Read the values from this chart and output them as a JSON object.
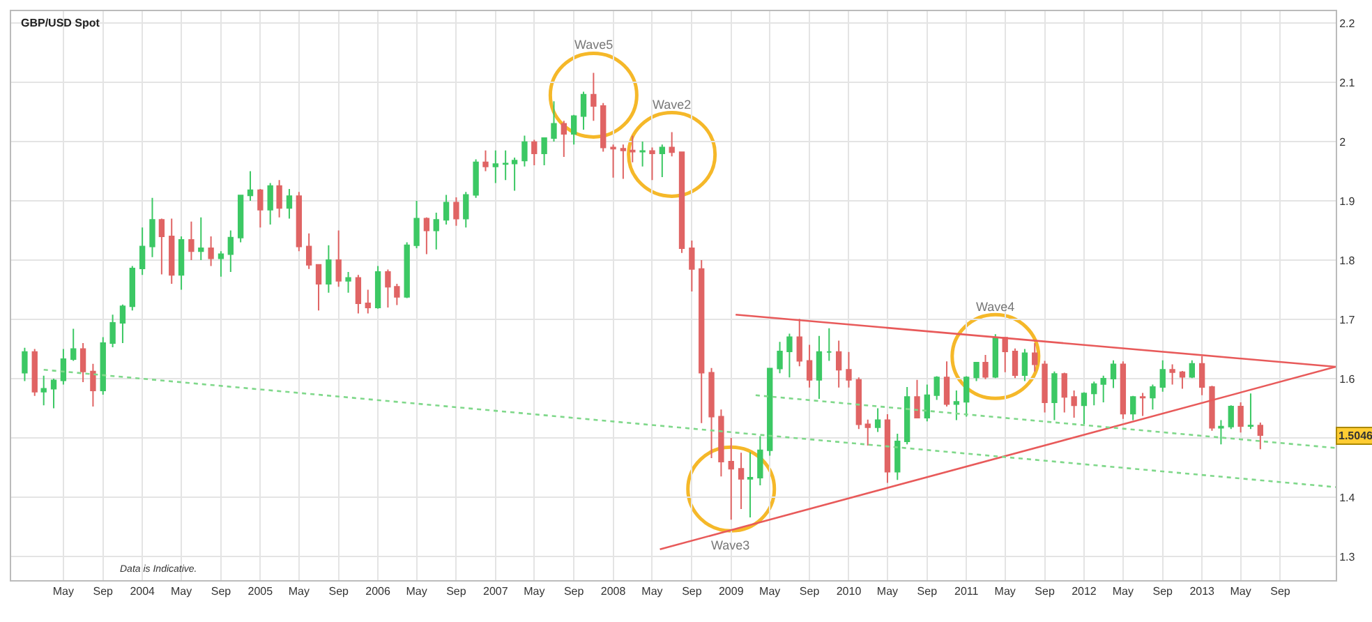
{
  "chart_data": {
    "type": "candlestick",
    "title": "GBP/USD Spot",
    "x": [
      "2003-01",
      "2003-02",
      "2003-03",
      "2003-04",
      "2003-05",
      "2003-06",
      "2003-07",
      "2003-08",
      "2003-09",
      "2003-10",
      "2003-11",
      "2003-12",
      "2004-01",
      "2004-02",
      "2004-03",
      "2004-04",
      "2004-05",
      "2004-06",
      "2004-07",
      "2004-08",
      "2004-09",
      "2004-10",
      "2004-11",
      "2004-12",
      "2005-01",
      "2005-02",
      "2005-03",
      "2005-04",
      "2005-05",
      "2005-06",
      "2005-07",
      "2005-08",
      "2005-09",
      "2005-10",
      "2005-11",
      "2005-12",
      "2006-01",
      "2006-02",
      "2006-03",
      "2006-04",
      "2006-05",
      "2006-06",
      "2006-07",
      "2006-08",
      "2006-09",
      "2006-10",
      "2006-11",
      "2006-12",
      "2007-01",
      "2007-02",
      "2007-03",
      "2007-04",
      "2007-05",
      "2007-06",
      "2007-07",
      "2007-08",
      "2007-09",
      "2007-10",
      "2007-11",
      "2007-12",
      "2008-01",
      "2008-02",
      "2008-03",
      "2008-04",
      "2008-05",
      "2008-06",
      "2008-07",
      "2008-08",
      "2008-09",
      "2008-10",
      "2008-11",
      "2008-12",
      "2009-01",
      "2009-02",
      "2009-03",
      "2009-04",
      "2009-05",
      "2009-06",
      "2009-07",
      "2009-08",
      "2009-09",
      "2009-10",
      "2009-11",
      "2009-12",
      "2010-01",
      "2010-02",
      "2010-03",
      "2010-04",
      "2010-05",
      "2010-06",
      "2010-07",
      "2010-08",
      "2010-09",
      "2010-10",
      "2010-11",
      "2010-12",
      "2011-01",
      "2011-02",
      "2011-03",
      "2011-04",
      "2011-05",
      "2011-06",
      "2011-07",
      "2011-08",
      "2011-09",
      "2011-10",
      "2011-11",
      "2011-12",
      "2012-01",
      "2012-02",
      "2012-03",
      "2012-04",
      "2012-05",
      "2012-06",
      "2012-07",
      "2012-08",
      "2012-09",
      "2012-10",
      "2012-11",
      "2012-12",
      "2013-01",
      "2013-02",
      "2013-03",
      "2013-04",
      "2013-05",
      "2013-06",
      "2013-07"
    ],
    "ohlc": [
      [
        1.61,
        1.652,
        1.596,
        1.645
      ],
      [
        1.645,
        1.65,
        1.571,
        1.578
      ],
      [
        1.578,
        1.605,
        1.555,
        1.583
      ],
      [
        1.583,
        1.6,
        1.55,
        1.597
      ],
      [
        1.597,
        1.65,
        1.59,
        1.633
      ],
      [
        1.633,
        1.684,
        1.63,
        1.65
      ],
      [
        1.65,
        1.66,
        1.594,
        1.612
      ],
      [
        1.612,
        1.625,
        1.553,
        1.58
      ],
      [
        1.58,
        1.67,
        1.573,
        1.66
      ],
      [
        1.66,
        1.708,
        1.653,
        1.694
      ],
      [
        1.694,
        1.725,
        1.66,
        1.722
      ],
      [
        1.722,
        1.79,
        1.715,
        1.786
      ],
      [
        1.786,
        1.855,
        1.775,
        1.823
      ],
      [
        1.823,
        1.905,
        1.805,
        1.868
      ],
      [
        1.868,
        1.87,
        1.776,
        1.84
      ],
      [
        1.84,
        1.87,
        1.76,
        1.775
      ],
      [
        1.775,
        1.84,
        1.75,
        1.834
      ],
      [
        1.834,
        1.865,
        1.8,
        1.815
      ],
      [
        1.815,
        1.872,
        1.8,
        1.82
      ],
      [
        1.82,
        1.84,
        1.79,
        1.803
      ],
      [
        1.803,
        1.815,
        1.772,
        1.81
      ],
      [
        1.81,
        1.85,
        1.78,
        1.838
      ],
      [
        1.838,
        1.91,
        1.83,
        1.909
      ],
      [
        1.909,
        1.95,
        1.9,
        1.918
      ],
      [
        1.918,
        1.92,
        1.855,
        1.885
      ],
      [
        1.885,
        1.93,
        1.86,
        1.925
      ],
      [
        1.925,
        1.935,
        1.872,
        1.888
      ],
      [
        1.888,
        1.92,
        1.87,
        1.908
      ],
      [
        1.908,
        1.915,
        1.815,
        1.823
      ],
      [
        1.823,
        1.845,
        1.785,
        1.792
      ],
      [
        1.792,
        1.792,
        1.715,
        1.76
      ],
      [
        1.76,
        1.825,
        1.745,
        1.8
      ],
      [
        1.8,
        1.85,
        1.755,
        1.765
      ],
      [
        1.765,
        1.78,
        1.745,
        1.77
      ],
      [
        1.77,
        1.775,
        1.71,
        1.727
      ],
      [
        1.727,
        1.75,
        1.71,
        1.72
      ],
      [
        1.72,
        1.79,
        1.718,
        1.78
      ],
      [
        1.78,
        1.784,
        1.72,
        1.755
      ],
      [
        1.755,
        1.76,
        1.724,
        1.738
      ],
      [
        1.738,
        1.83,
        1.736,
        1.825
      ],
      [
        1.825,
        1.9,
        1.82,
        1.87
      ],
      [
        1.87,
        1.872,
        1.81,
        1.85
      ],
      [
        1.85,
        1.88,
        1.818,
        1.868
      ],
      [
        1.868,
        1.91,
        1.86,
        1.897
      ],
      [
        1.897,
        1.906,
        1.858,
        1.87
      ],
      [
        1.87,
        1.915,
        1.855,
        1.91
      ],
      [
        1.91,
        1.97,
        1.905,
        1.965
      ],
      [
        1.965,
        1.985,
        1.95,
        1.958
      ],
      [
        1.958,
        1.985,
        1.93,
        1.962
      ],
      [
        1.962,
        1.985,
        1.935,
        1.963
      ],
      [
        1.963,
        1.973,
        1.917,
        1.968
      ],
      [
        1.968,
        2.01,
        1.958,
        1.999
      ],
      [
        1.999,
        2.003,
        1.96,
        1.98
      ],
      [
        1.98,
        2.007,
        1.96,
        2.006
      ],
      [
        2.006,
        2.068,
        2.0,
        2.03
      ],
      [
        2.03,
        2.035,
        1.974,
        2.013
      ],
      [
        2.013,
        2.045,
        1.995,
        2.043
      ],
      [
        2.043,
        2.084,
        2.02,
        2.079
      ],
      [
        2.079,
        2.116,
        2.035,
        2.06
      ],
      [
        2.06,
        2.065,
        1.983,
        1.99
      ],
      [
        1.99,
        1.995,
        1.939,
        1.988
      ],
      [
        1.988,
        1.995,
        1.937,
        1.985
      ],
      [
        1.985,
        2.01,
        1.965,
        1.983
      ],
      [
        1.983,
        2.0,
        1.958,
        1.984
      ],
      [
        1.984,
        1.99,
        1.935,
        1.98
      ],
      [
        1.98,
        1.995,
        1.94,
        1.99
      ],
      [
        1.99,
        2.016,
        1.975,
        1.982
      ],
      [
        1.982,
        1.982,
        1.812,
        1.82
      ],
      [
        1.82,
        1.833,
        1.747,
        1.785
      ],
      [
        1.785,
        1.8,
        1.525,
        1.61
      ],
      [
        1.61,
        1.618,
        1.466,
        1.536
      ],
      [
        1.536,
        1.548,
        1.435,
        1.46
      ],
      [
        1.46,
        1.5,
        1.362,
        1.448
      ],
      [
        1.448,
        1.475,
        1.38,
        1.431
      ],
      [
        1.431,
        1.476,
        1.366,
        1.433
      ],
      [
        1.433,
        1.503,
        1.42,
        1.479
      ],
      [
        1.479,
        1.617,
        1.47,
        1.617
      ],
      [
        1.617,
        1.662,
        1.609,
        1.646
      ],
      [
        1.646,
        1.676,
        1.602,
        1.67
      ],
      [
        1.67,
        1.701,
        1.621,
        1.63
      ],
      [
        1.63,
        1.657,
        1.585,
        1.598
      ],
      [
        1.598,
        1.672,
        1.566,
        1.645
      ],
      [
        1.645,
        1.685,
        1.63,
        1.645
      ],
      [
        1.645,
        1.664,
        1.585,
        1.615
      ],
      [
        1.615,
        1.645,
        1.585,
        1.598
      ],
      [
        1.598,
        1.602,
        1.515,
        1.523
      ],
      [
        1.523,
        1.531,
        1.487,
        1.518
      ],
      [
        1.518,
        1.55,
        1.51,
        1.53
      ],
      [
        1.53,
        1.54,
        1.424,
        1.443
      ],
      [
        1.443,
        1.507,
        1.429,
        1.494
      ],
      [
        1.494,
        1.586,
        1.489,
        1.569
      ],
      [
        1.569,
        1.598,
        1.534,
        1.534
      ],
      [
        1.534,
        1.59,
        1.528,
        1.572
      ],
      [
        1.572,
        1.604,
        1.564,
        1.602
      ],
      [
        1.602,
        1.629,
        1.553,
        1.557
      ],
      [
        1.557,
        1.58,
        1.53,
        1.561
      ],
      [
        1.561,
        1.604,
        1.536,
        1.602
      ],
      [
        1.602,
        1.628,
        1.596,
        1.627
      ],
      [
        1.627,
        1.64,
        1.599,
        1.603
      ],
      [
        1.603,
        1.675,
        1.601,
        1.669
      ],
      [
        1.669,
        1.67,
        1.611,
        1.646
      ],
      [
        1.646,
        1.651,
        1.601,
        1.606
      ],
      [
        1.606,
        1.65,
        1.596,
        1.643
      ],
      [
        1.643,
        1.66,
        1.612,
        1.624
      ],
      [
        1.624,
        1.63,
        1.543,
        1.56
      ],
      [
        1.56,
        1.612,
        1.53,
        1.608
      ],
      [
        1.608,
        1.61,
        1.543,
        1.569
      ],
      [
        1.569,
        1.58,
        1.534,
        1.555
      ],
      [
        1.555,
        1.577,
        1.523,
        1.575
      ],
      [
        1.575,
        1.595,
        1.555,
        1.591
      ],
      [
        1.591,
        1.605,
        1.56,
        1.6
      ],
      [
        1.6,
        1.631,
        1.584,
        1.624
      ],
      [
        1.624,
        1.629,
        1.532,
        1.541
      ],
      [
        1.541,
        1.571,
        1.53,
        1.569
      ],
      [
        1.569,
        1.576,
        1.537,
        1.568
      ],
      [
        1.568,
        1.59,
        1.548,
        1.586
      ],
      [
        1.586,
        1.631,
        1.578,
        1.615
      ],
      [
        1.615,
        1.624,
        1.59,
        1.611
      ],
      [
        1.611,
        1.613,
        1.583,
        1.603
      ],
      [
        1.603,
        1.631,
        1.601,
        1.625
      ],
      [
        1.625,
        1.638,
        1.572,
        1.586
      ],
      [
        1.586,
        1.588,
        1.512,
        1.517
      ],
      [
        1.517,
        1.53,
        1.489,
        1.519
      ],
      [
        1.519,
        1.555,
        1.515,
        1.553
      ],
      [
        1.553,
        1.56,
        1.509,
        1.52
      ],
      [
        1.52,
        1.575,
        1.515,
        1.521
      ],
      [
        1.521,
        1.526,
        1.481,
        1.5046
      ]
    ],
    "colors": [
      "#3cc864",
      "#e06464",
      "#3cc864",
      "#3cc864",
      "#3cc864",
      "#3cc864",
      "#e06464",
      "#e06464",
      "#3cc864",
      "#3cc864",
      "#3cc864",
      "#3cc864",
      "#3cc864",
      "#3cc864",
      "#e06464",
      "#e06464",
      "#3cc864",
      "#e06464",
      "#3cc864",
      "#e06464",
      "#3cc864",
      "#3cc864",
      "#3cc864",
      "#3cc864",
      "#e06464",
      "#3cc864",
      "#e06464",
      "#3cc864",
      "#e06464",
      "#e06464",
      "#e06464",
      "#3cc864",
      "#e06464",
      "#3cc864",
      "#e06464",
      "#e06464",
      "#3cc864",
      "#e06464",
      "#e06464",
      "#3cc864",
      "#3cc864",
      "#e06464",
      "#3cc864",
      "#3cc864",
      "#e06464",
      "#3cc864",
      "#3cc864",
      "#e06464",
      "#3cc864",
      "#3cc864",
      "#3cc864",
      "#3cc864",
      "#e06464",
      "#3cc864",
      "#3cc864",
      "#e06464",
      "#3cc864",
      "#3cc864",
      "#e06464",
      "#e06464",
      "#e06464",
      "#e06464",
      "#e06464",
      "#3cc864",
      "#e06464",
      "#3cc864",
      "#e06464",
      "#e06464",
      "#e06464",
      "#e06464",
      "#e06464",
      "#e06464",
      "#e06464",
      "#e06464",
      "#3cc864",
      "#3cc864",
      "#3cc864",
      "#3cc864",
      "#3cc864",
      "#e06464",
      "#e06464",
      "#3cc864",
      "#3cc864",
      "#e06464",
      "#e06464",
      "#e06464",
      "#e06464",
      "#3cc864",
      "#e06464",
      "#3cc864",
      "#3cc864",
      "#e06464",
      "#3cc864",
      "#3cc864",
      "#e06464",
      "#3cc864",
      "#3cc864",
      "#3cc864",
      "#e06464",
      "#3cc864",
      "#e06464",
      "#e06464",
      "#3cc864",
      "#e06464",
      "#e06464",
      "#3cc864",
      "#e06464",
      "#e06464",
      "#3cc864",
      "#3cc864",
      "#3cc864",
      "#3cc864",
      "#e06464",
      "#3cc864",
      "#e06464",
      "#3cc864",
      "#3cc864",
      "#e06464",
      "#e06464",
      "#3cc864",
      "#e06464",
      "#e06464",
      "#3cc864",
      "#3cc864",
      "#e06464",
      "#3cc864",
      "#e06464"
    ],
    "value_labels": [
      null,
      null,
      null,
      null,
      null,
      null,
      null,
      null,
      null,
      null,
      null,
      null,
      null,
      null,
      null,
      null,
      null,
      null,
      null,
      null,
      null,
      null,
      null,
      null,
      null,
      null,
      null,
      null,
      null,
      null,
      null,
      null,
      null,
      null,
      null,
      null,
      null,
      null,
      null,
      null,
      null,
      null,
      null,
      null,
      null,
      null,
      null,
      null,
      null,
      null,
      null,
      null,
      null,
      null,
      null,
      null,
      null,
      null,
      null,
      null,
      null,
      null,
      null,
      null,
      null,
      null,
      null,
      null,
      null,
      null,
      null,
      null,
      null,
      null,
      null,
      null,
      null,
      null,
      null,
      null,
      null,
      null,
      null,
      null,
      null,
      null,
      null,
      null,
      null,
      null,
      null,
      null,
      null,
      null,
      null,
      null,
      null,
      null,
      null,
      null,
      null,
      null,
      null,
      null,
      null,
      null,
      null,
      null,
      null,
      null,
      null,
      null,
      null,
      null,
      null,
      null,
      null,
      null,
      null,
      null,
      null,
      null,
      null,
      null,
      null,
      null,
      "1.5046"
    ],
    "series": [
      {
        "type": "line",
        "x": [
          "2009-01-15",
          "2014-02-20"
        ],
        "values": [
          1.708,
          1.62
        ],
        "color": "#e85a5a",
        "line_style": "solid"
      },
      {
        "type": "line",
        "x": [
          "2008-05-25",
          "2014-02-20"
        ],
        "values": [
          1.312,
          1.62
        ],
        "color": "#e85a5a",
        "line_style": "solid"
      },
      {
        "type": "line",
        "x": [
          "2003-03-01",
          "2014-02-20"
        ],
        "values": [
          1.615,
          1.417
        ],
        "color": "#7fd88a",
        "line_style": "dotted"
      },
      {
        "type": "line",
        "x": [
          "2009-03-18",
          "2014-02-20"
        ],
        "values": [
          1.572,
          1.483
        ],
        "color": "#7fd88a",
        "line_style": "dotted"
      }
    ],
    "annotations": [
      {
        "text": "Wave5",
        "x": "2007-11",
        "y": 2.116
      },
      {
        "text": "Wave2",
        "x": "2008-07",
        "y": 2.016
      },
      {
        "text": "Wave3",
        "x": "2009-01",
        "y": 1.362
      },
      {
        "text": "Wave4",
        "x": "2011-04",
        "y": 1.675
      },
      "Data is Indicative."
    ],
    "xlim": [
      "2002-11-20",
      "2014-02-20"
    ],
    "xticks": [
      {
        "value": "2003-05",
        "label": "May"
      },
      {
        "value": "2003-09",
        "label": "Sep"
      },
      {
        "value": "2004-01",
        "label": "2004"
      },
      {
        "value": "2004-05",
        "label": "May"
      },
      {
        "value": "2004-09",
        "label": "Sep"
      },
      {
        "value": "2005-01",
        "label": "2005"
      },
      {
        "value": "2005-05",
        "label": "May"
      },
      {
        "value": "2005-09",
        "label": "Sep"
      },
      {
        "value": "2006-01",
        "label": "2006"
      },
      {
        "value": "2006-05",
        "label": "May"
      },
      {
        "value": "2006-09",
        "label": "Sep"
      },
      {
        "value": "2007-01",
        "label": "2007"
      },
      {
        "value": "2007-05",
        "label": "May"
      },
      {
        "value": "2007-09",
        "label": "Sep"
      },
      {
        "value": "2008-01",
        "label": "2008"
      },
      {
        "value": "2008-05",
        "label": "May"
      },
      {
        "value": "2008-09",
        "label": "Sep"
      },
      {
        "value": "2009-01",
        "label": "2009"
      },
      {
        "value": "2009-05",
        "label": "May"
      },
      {
        "value": "2009-09",
        "label": "Sep"
      },
      {
        "value": "2010-01",
        "label": "2010"
      },
      {
        "value": "2010-05",
        "label": "May"
      },
      {
        "value": "2010-09",
        "label": "Sep"
      },
      {
        "value": "2011-01",
        "label": "2011"
      },
      {
        "value": "2011-05",
        "label": "May"
      },
      {
        "value": "2011-09",
        "label": "Sep"
      },
      {
        "value": "2012-01",
        "label": "2012"
      },
      {
        "value": "2012-05",
        "label": "May"
      },
      {
        "value": "2012-09",
        "label": "Sep"
      },
      {
        "value": "2013-01",
        "label": "2013"
      },
      {
        "value": "2013-05",
        "label": "May"
      },
      {
        "value": "2013-09",
        "label": "Sep"
      }
    ],
    "ylim": [
      1.26,
      2.22
    ],
    "yticks": [
      1.3,
      1.4,
      {
        "value": 1.5,
        "label": null
      },
      1.6,
      1.7,
      1.8,
      1.9,
      2,
      2.1,
      2.2
    ],
    "grid": true,
    "marker": "none"
  }
}
